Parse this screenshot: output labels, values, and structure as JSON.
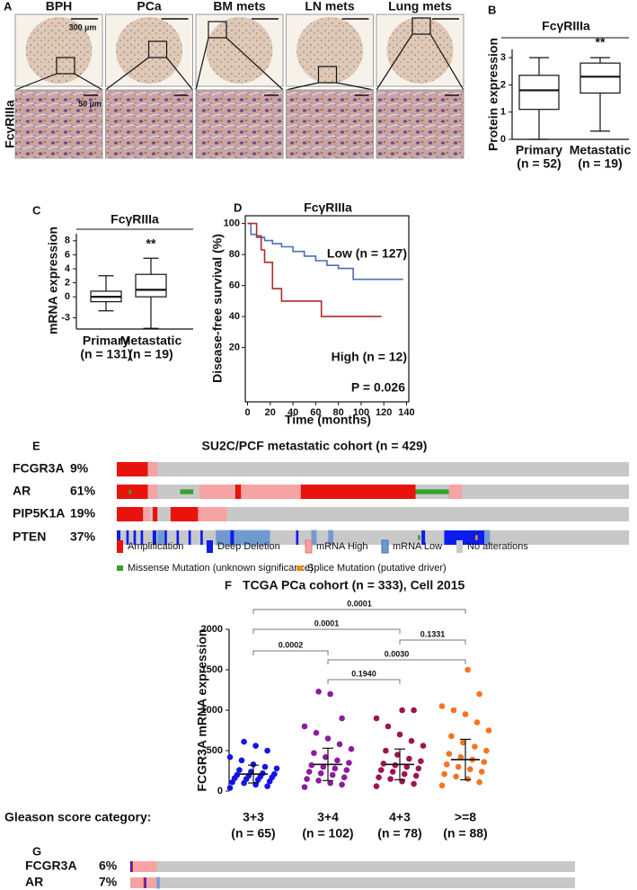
{
  "panel_a": {
    "letter": "A",
    "columns": [
      "BPH",
      "PCa",
      "BM mets",
      "LN mets",
      "Lung mets"
    ],
    "row_label": "FcγRIIIa",
    "scale_bars": [
      "300 µm",
      "50 µm"
    ]
  },
  "chart_data": [
    {
      "letter": "B",
      "type": "box",
      "title": "FcγRIIIa",
      "ylabel": "Protein expression",
      "categories": [
        "Primary",
        "Metastatic"
      ],
      "n_labels": [
        "(n = 52)",
        "(n = 19)"
      ],
      "boxes": [
        {
          "min": 0,
          "q1": 1.1,
          "median": 1.8,
          "q3": 2.35,
          "max": 3
        },
        {
          "min": 0.3,
          "q1": 1.7,
          "median": 2.3,
          "q3": 2.8,
          "max": 3
        }
      ],
      "significance": "**",
      "ylim": [
        0,
        3.3
      ],
      "yticks": [
        0,
        1,
        2,
        3
      ]
    },
    {
      "letter": "C",
      "type": "box",
      "title": "FcγRIIIa",
      "ylabel": "mRNA expression",
      "categories": [
        "Primary",
        "Metastatic"
      ],
      "n_labels": [
        "(n = 131)",
        "(n = 19)"
      ],
      "boxes": [
        {
          "min": -2,
          "q1": -0.7,
          "median": 0,
          "q3": 0.8,
          "max": 3
        },
        {
          "min": -4.5,
          "q1": 0,
          "median": 1,
          "q3": 3.2,
          "max": 5.5
        }
      ],
      "significance": "**",
      "ylim": [
        -4.6,
        9
      ],
      "yticks": [
        -3,
        0,
        2,
        4,
        6,
        8
      ]
    },
    {
      "letter": "D",
      "type": "line",
      "title": "FcγRIIIa",
      "xlabel": "Time (months)",
      "ylabel": "Disease-free survival (%)",
      "series": [
        {
          "name": "Low (n = 127)",
          "color": "#4a6fb5",
          "x": [
            0,
            3,
            3,
            8,
            8,
            15,
            15,
            22,
            22,
            30,
            30,
            40,
            40,
            50,
            50,
            60,
            60,
            70,
            70,
            80,
            80,
            93,
            93,
            137
          ],
          "values": [
            100,
            100,
            93,
            93,
            91,
            91,
            89,
            89,
            87,
            87,
            85,
            85,
            82,
            82,
            79,
            79,
            76,
            76,
            73,
            73,
            71,
            71,
            64,
            64
          ]
        },
        {
          "name": "High (n = 12)",
          "color": "#b02a2a",
          "x": [
            0,
            8,
            8,
            12,
            12,
            15,
            15,
            22,
            22,
            30,
            30,
            65,
            65,
            118
          ],
          "values": [
            100,
            100,
            92,
            92,
            83,
            83,
            75,
            75,
            58,
            58,
            50,
            50,
            40,
            40
          ]
        }
      ],
      "annotation": "P = 0.026",
      "xlim": [
        -2,
        142
      ],
      "ylim": [
        -15,
        105
      ],
      "xticks": [
        0,
        20,
        40,
        60,
        80,
        100,
        120,
        140
      ],
      "yticks": [
        20,
        40,
        60,
        80,
        100
      ]
    },
    {
      "letter": "F",
      "type": "scatter",
      "title": "TCGA PCa cohort (n = 333), Cell 2015",
      "ylabel": "FCGR3A mRNA expression",
      "category_label": "Gleason score category:",
      "categories": [
        "3+3",
        "3+4",
        "4+3",
        ">=8"
      ],
      "n_labels": [
        "(n = 65)",
        "(n = 102)",
        "(n = 78)",
        "(n = 88)"
      ],
      "series": [
        {
          "color": "#1414e6",
          "values": [
            40,
            60,
            80,
            100,
            110,
            120,
            140,
            150,
            160,
            170,
            180,
            190,
            200,
            210,
            220,
            240,
            260,
            280,
            300,
            330,
            380,
            420,
            500,
            560,
            610
          ]
        },
        {
          "color": "#8a1c9c",
          "values": [
            50,
            80,
            100,
            130,
            150,
            170,
            200,
            220,
            240,
            260,
            280,
            300,
            320,
            350,
            380,
            420,
            470,
            520,
            580,
            650,
            720,
            800,
            900,
            1200,
            1230
          ]
        },
        {
          "color": "#9e1352",
          "values": [
            60,
            90,
            120,
            150,
            170,
            190,
            210,
            240,
            260,
            280,
            300,
            320,
            340,
            370,
            400,
            450,
            500,
            560,
            620,
            700,
            800,
            900,
            1000,
            1000
          ]
        },
        {
          "color": "#f47420",
          "values": [
            70,
            110,
            150,
            180,
            210,
            240,
            270,
            300,
            330,
            360,
            390,
            420,
            460,
            500,
            550,
            600,
            680,
            750,
            850,
            950,
            1000,
            1050,
            1200,
            1500
          ]
        }
      ],
      "means": [
        210,
        330,
        330,
        390
      ],
      "sds": [
        110,
        200,
        190,
        250
      ],
      "p_values": [
        "0.0001",
        "0.0001",
        "0.0002",
        "0.1331",
        "0.0030",
        "0.1940"
      ],
      "ylim": [
        0,
        2000
      ],
      "yticks": [
        0,
        500,
        1000,
        1500,
        2000
      ]
    }
  ],
  "panel_e": {
    "letter": "E",
    "title": "SU2C/PCF metastatic cohort (n = 429)",
    "legend": [
      "Amplification",
      "Deep Deletion",
      "mRNA High",
      "mRNA Low",
      "No alterations",
      "Missense Mutation (unknown significance)",
      "Splice Mutation (putative driver)"
    ],
    "legend_colors": [
      "#e8130d",
      "#0b1ced",
      "#f5a3a3",
      "#6f9ad0",
      "#c8c8c8",
      "#37a12f",
      "#f08a24"
    ],
    "genes": [
      {
        "name": "FCGR3A",
        "pct": "9%",
        "segments": [
          [
            0,
            0,
            26
          ],
          [
            2,
            26,
            34
          ]
        ]
      },
      {
        "name": "AR",
        "pct": "61%",
        "segments": [
          [
            0,
            0,
            26
          ],
          [
            5,
            10,
            12
          ],
          [
            2,
            26,
            34
          ],
          [
            5,
            53,
            64
          ],
          [
            2,
            69,
            98
          ],
          [
            0,
            99,
            104
          ],
          [
            2,
            104,
            154
          ],
          [
            0,
            154,
            250
          ],
          [
            5,
            250,
            278
          ],
          [
            2,
            278,
            289
          ]
        ]
      },
      {
        "name": "PIP5K1A",
        "pct": "19%",
        "segments": [
          [
            0,
            0,
            22
          ],
          [
            2,
            22,
            28
          ],
          [
            0,
            30,
            34
          ],
          [
            0,
            45,
            68
          ],
          [
            2,
            68,
            92
          ]
        ]
      },
      {
        "name": "PTEN",
        "pct": "37%",
        "segments": [
          [
            1,
            0,
            3
          ],
          [
            1,
            8,
            10
          ],
          [
            1,
            14,
            16
          ],
          [
            1,
            20,
            22
          ],
          [
            1,
            30,
            33
          ],
          [
            3,
            34,
            40
          ],
          [
            1,
            40,
            42
          ],
          [
            1,
            50,
            52
          ],
          [
            1,
            60,
            62
          ],
          [
            1,
            70,
            72
          ],
          [
            3,
            83,
            128
          ],
          [
            1,
            95,
            98
          ],
          [
            1,
            150,
            152
          ],
          [
            3,
            163,
            167
          ],
          [
            3,
            177,
            181
          ],
          [
            1,
            255,
            258
          ],
          [
            1,
            274,
            308
          ],
          [
            5,
            252,
            254
          ],
          [
            6,
            300,
            302
          ],
          [
            3,
            308,
            312
          ]
        ]
      }
    ]
  },
  "panel_g": {
    "letter": "G",
    "genes": [
      {
        "name": "FCGR3A",
        "pct": "6%",
        "segments": [
          [
            1,
            0,
            1
          ],
          [
            0,
            1,
            2
          ],
          [
            2,
            2,
            20
          ]
        ]
      },
      {
        "name": "AR",
        "pct": "7%",
        "segments": [
          [
            2,
            0,
            22
          ],
          [
            0,
            10,
            11
          ],
          [
            1,
            11,
            12
          ],
          [
            3,
            20,
            22
          ]
        ]
      }
    ]
  }
}
